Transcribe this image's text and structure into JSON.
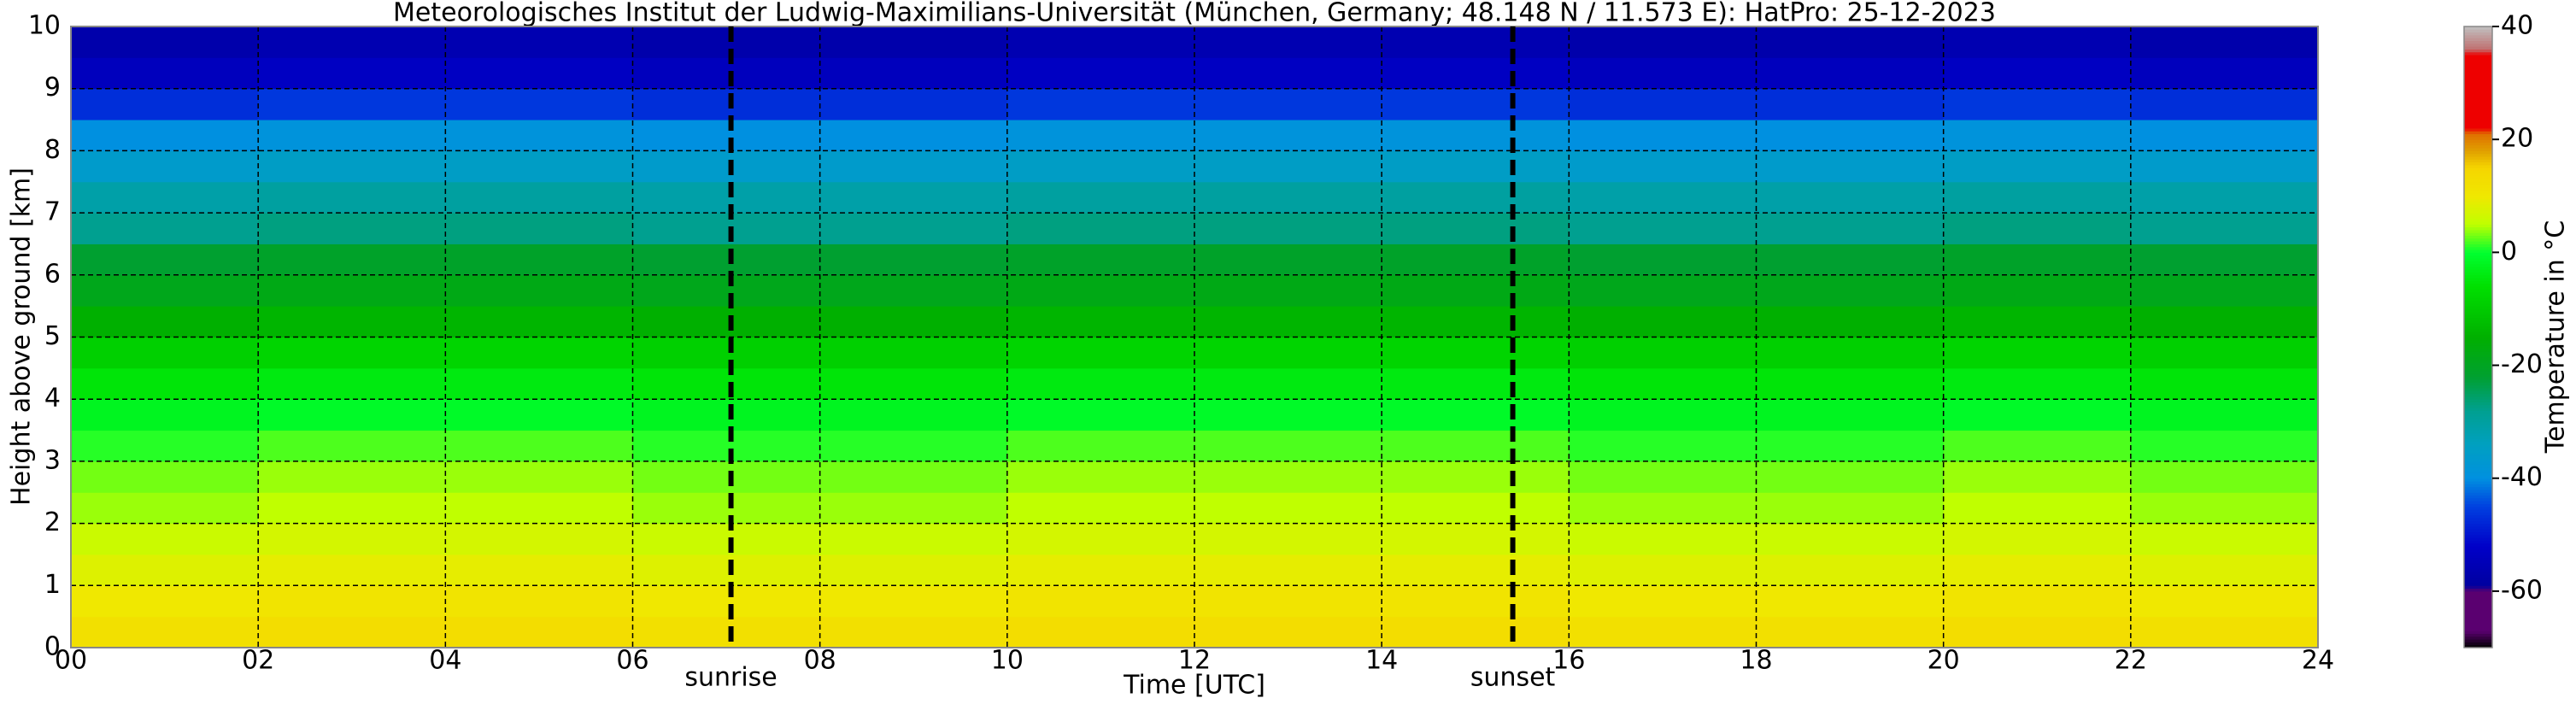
{
  "chart_data": {
    "type": "heatmap",
    "title": "Meteorologisches Institut der Ludwig-Maximilians-Universität (München, Germany; 48.148 N / 11.573 E):    HatPro: 25-12-2023",
    "x_label": "Time [UTC]",
    "y_label": "Height above ground [km]",
    "x_edges": [
      0,
      2,
      4,
      6,
      8,
      10,
      12,
      14,
      16,
      18,
      20,
      22,
      24
    ],
    "y_edges": [
      0,
      0.5,
      1,
      1.5,
      2,
      2.5,
      3,
      3.5,
      4,
      4.5,
      5,
      5.5,
      6,
      6.5,
      7,
      7.5,
      8,
      8.5,
      9,
      9.5,
      10
    ],
    "values": [
      [
        12,
        13,
        13,
        12,
        12,
        13,
        13,
        13,
        12,
        12,
        13,
        12
      ],
      [
        10,
        11,
        11,
        10,
        10,
        11,
        11,
        11,
        10,
        10,
        11,
        10
      ],
      [
        8,
        9,
        9,
        8,
        8,
        9,
        9,
        9,
        8,
        8,
        9,
        8
      ],
      [
        6,
        7,
        7,
        6,
        6,
        7,
        7,
        7,
        6,
        6,
        7,
        6
      ],
      [
        4,
        5,
        5,
        4,
        4,
        5,
        5,
        5,
        4,
        4,
        5,
        4
      ],
      [
        3,
        4,
        4,
        3,
        3,
        4,
        4,
        4,
        3,
        3,
        4,
        3
      ],
      [
        1,
        2,
        2,
        1,
        1,
        2,
        2,
        2,
        1,
        1,
        2,
        1
      ],
      [
        -2,
        -1,
        -1,
        -2,
        -2,
        -1,
        -1,
        -1,
        -2,
        -2,
        -1,
        -2
      ],
      [
        -5,
        -4,
        -4,
        -5,
        -5,
        -4,
        -4,
        -4,
        -5,
        -5,
        -4,
        -5
      ],
      [
        -9,
        -8,
        -8,
        -9,
        -9,
        -8,
        -8,
        -8,
        -9,
        -9,
        -8,
        -9
      ],
      [
        -15,
        -14,
        -14,
        -15,
        -15,
        -14,
        -14,
        -14,
        -15,
        -15,
        -14,
        -15
      ],
      [
        -19,
        -18,
        -18,
        -19,
        -19,
        -18,
        -18,
        -18,
        -19,
        -19,
        -18,
        -19
      ],
      [
        -22,
        -21,
        -21,
        -22,
        -22,
        -21,
        -21,
        -21,
        -22,
        -22,
        -21,
        -22
      ],
      [
        -28,
        -27,
        -27,
        -28,
        -28,
        -27,
        -27,
        -27,
        -28,
        -28,
        -27,
        -28
      ],
      [
        -31,
        -30,
        -30,
        -31,
        -31,
        -30,
        -30,
        -30,
        -31,
        -31,
        -30,
        -31
      ],
      [
        -36,
        -35,
        -35,
        -36,
        -36,
        -35,
        -35,
        -35,
        -36,
        -36,
        -35,
        -36
      ],
      [
        -40,
        -39,
        -39,
        -40,
        -40,
        -39,
        -39,
        -39,
        -40,
        -40,
        -39,
        -40
      ],
      [
        -47,
        -46,
        -46,
        -47,
        -47,
        -46,
        -46,
        -46,
        -47,
        -47,
        -46,
        -47
      ],
      [
        -54,
        -53,
        -53,
        -54,
        -54,
        -53,
        -53,
        -53,
        -54,
        -54,
        -53,
        -54
      ],
      [
        -57,
        -56,
        -56,
        -57,
        -57,
        -56,
        -56,
        -56,
        -57,
        -57,
        -56,
        -57
      ]
    ],
    "xlim": [
      0,
      24
    ],
    "ylim": [
      0,
      10
    ],
    "xticks": [
      {
        "value": 0,
        "label": "00"
      },
      {
        "value": 2,
        "label": "02"
      },
      {
        "value": 4,
        "label": "04"
      },
      {
        "value": 6,
        "label": "06"
      },
      {
        "value": 8,
        "label": "08"
      },
      10,
      12,
      14,
      16,
      18,
      20,
      22,
      24
    ],
    "yticks": [
      0,
      1,
      2,
      3,
      4,
      5,
      6,
      7,
      8,
      9,
      10
    ],
    "grid": true,
    "annotations": [
      {
        "label": "sunrise",
        "x": 7.05
      },
      {
        "label": "sunset",
        "x": 15.4
      }
    ],
    "colorbar": {
      "label": "Temperature in °C",
      "lim": [
        -70,
        40
      ],
      "ticks": [
        -60,
        -40,
        -20,
        0,
        20,
        40
      ],
      "stops": [
        {
          "value": -70,
          "color": "#000000"
        },
        {
          "value": -67,
          "color": "#5a0070"
        },
        {
          "value": -60,
          "color": "#5a0070"
        },
        {
          "value": -59,
          "color": "#0000a0"
        },
        {
          "value": -52,
          "color": "#0000c8"
        },
        {
          "value": -45,
          "color": "#0040e0"
        },
        {
          "value": -40,
          "color": "#0090e0"
        },
        {
          "value": -34,
          "color": "#00a0c0"
        },
        {
          "value": -28,
          "color": "#00a090"
        },
        {
          "value": -22,
          "color": "#00a030"
        },
        {
          "value": -15,
          "color": "#00b000"
        },
        {
          "value": -6,
          "color": "#00e000"
        },
        {
          "value": 0,
          "color": "#00ff30"
        },
        {
          "value": 5,
          "color": "#c0ff00"
        },
        {
          "value": 10,
          "color": "#f0e800"
        },
        {
          "value": 15,
          "color": "#f5d500"
        },
        {
          "value": 18,
          "color": "#e0a000"
        },
        {
          "value": 21,
          "color": "#e07000"
        },
        {
          "value": 22,
          "color": "#ee0000"
        },
        {
          "value": 35,
          "color": "#ee0000"
        },
        {
          "value": 36,
          "color": "#c07070"
        },
        {
          "value": 40,
          "color": "#c0c0c0"
        }
      ]
    }
  }
}
